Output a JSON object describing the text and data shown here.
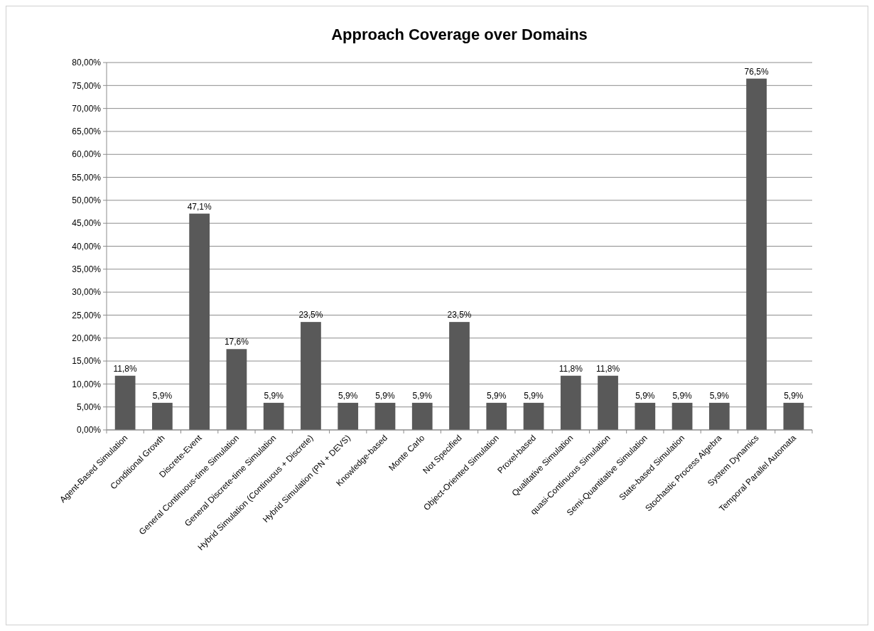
{
  "chart_data": {
    "type": "bar",
    "title": "Approach Coverage over Domains",
    "categories": [
      "Agent-Based Simulation",
      "Conditional Growth",
      "Discrete-Event",
      "General Continuous-time Simulation",
      "General Discrete-time Simulation",
      "Hybrid Simulation (Continuous + Discrete)",
      "Hybrid Simulation (PN + DEVS)",
      "Knowledge-based",
      "Monte Carlo",
      "Not Specified",
      "Object-Oriented Simulation",
      "Proxel-based",
      "Qualitative Simulation",
      "quasi-Continuous Simulation",
      "Semi-Quantitative Simulation",
      "State-based Simulation",
      "Stochastic Process Algebra",
      "System Dynamics",
      "Temporal Parallel Automata"
    ],
    "values": [
      11.8,
      5.9,
      47.1,
      17.6,
      5.9,
      23.5,
      5.9,
      5.9,
      5.9,
      23.5,
      5.9,
      5.9,
      11.8,
      11.8,
      5.9,
      5.9,
      5.9,
      76.5,
      5.9
    ],
    "value_labels": [
      "11,8%",
      "5,9%",
      "47,1%",
      "17,6%",
      "5,9%",
      "23,5%",
      "5,9%",
      "5,9%",
      "5,9%",
      "23,5%",
      "5,9%",
      "5,9%",
      "11,8%",
      "11,8%",
      "5,9%",
      "5,9%",
      "5,9%",
      "76,5%",
      "5,9%"
    ],
    "color": "#595959",
    "ylim": [
      0,
      80
    ],
    "yticks": [
      {
        "value": 0,
        "label": "0,00%"
      },
      {
        "value": 5,
        "label": "5,00%"
      },
      {
        "value": 10,
        "label": "10,00%"
      },
      {
        "value": 15,
        "label": "15,00%"
      },
      {
        "value": 20,
        "label": "20,00%"
      },
      {
        "value": 25,
        "label": "25,00%"
      },
      {
        "value": 30,
        "label": "30,00%"
      },
      {
        "value": 35,
        "label": "35,00%"
      },
      {
        "value": 40,
        "label": "40,00%"
      },
      {
        "value": 45,
        "label": "45,00%"
      },
      {
        "value": 50,
        "label": "50,00%"
      },
      {
        "value": 55,
        "label": "55,00%"
      },
      {
        "value": 60,
        "label": "60,00%"
      },
      {
        "value": 65,
        "label": "65,00%"
      },
      {
        "value": 70,
        "label": "70,00%"
      },
      {
        "value": 75,
        "label": "75,00%"
      },
      {
        "value": 80,
        "label": "80,00%"
      }
    ],
    "grid": "y"
  }
}
